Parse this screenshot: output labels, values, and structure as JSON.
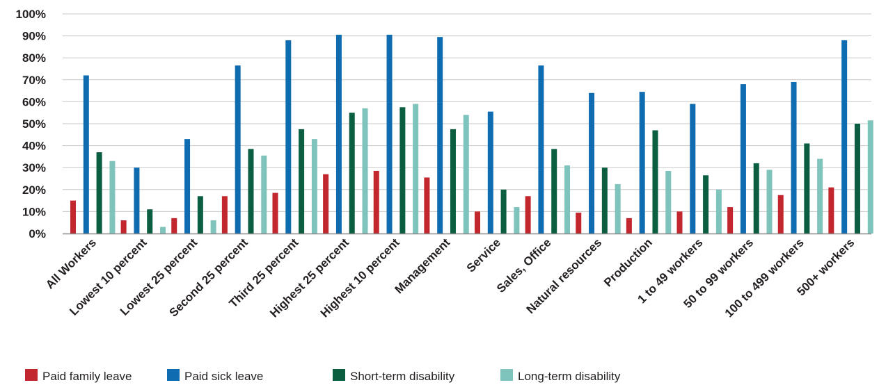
{
  "chart_data": {
    "type": "bar",
    "title": "",
    "xlabel": "",
    "ylabel": "",
    "ylim": [
      0,
      100
    ],
    "y_tick_values": [
      0,
      10,
      20,
      30,
      40,
      50,
      60,
      70,
      80,
      90,
      100
    ],
    "y_tick_labels": [
      "0%",
      "10%",
      "20%",
      "30%",
      "40%",
      "50%",
      "60%",
      "70%",
      "80%",
      "90%",
      "100%"
    ],
    "grid": "horizontal",
    "legend_position": "bottom",
    "categories": [
      "All Workers",
      "Lowest 10 percent",
      "Lowest 25 percent",
      "Second 25 percent",
      "Third 25 percent",
      "Highest 25 percent",
      "Highest 10 percent",
      "Management",
      "Service",
      "Sales, Office",
      "Natural resources",
      "Production",
      "1 to 49 workers",
      "50 to 99 workers",
      "100 to 499 workers",
      "500+ workers"
    ],
    "series": [
      {
        "name": "Paid family leave",
        "color": "#c1272d",
        "values": [
          15,
          6,
          7,
          17,
          18.5,
          27,
          28.5,
          25.5,
          10,
          17,
          9.5,
          7,
          10,
          12,
          17.5,
          21
        ]
      },
      {
        "name": "Paid sick leave",
        "color": "#0f6cb0",
        "values": [
          72,
          30,
          43,
          76.5,
          88,
          90.5,
          90.5,
          89.5,
          55.5,
          76.5,
          64,
          64.5,
          59,
          68,
          69,
          88
        ]
      },
      {
        "name": "Short-term disability",
        "color": "#0b5e3f",
        "values": [
          37,
          11,
          17,
          38.5,
          47.5,
          55,
          57.5,
          47.5,
          20,
          38.5,
          30,
          47,
          26.5,
          32,
          41,
          50
        ]
      },
      {
        "name": "Long-term disability",
        "color": "#7fc4bc",
        "values": [
          33,
          3,
          6,
          35.5,
          43,
          57,
          59,
          54,
          12,
          31,
          22.5,
          28.5,
          20,
          29,
          34,
          51.5
        ]
      }
    ]
  }
}
